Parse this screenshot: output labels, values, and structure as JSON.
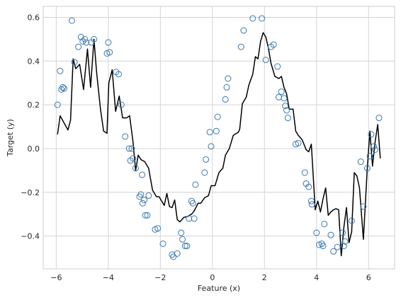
{
  "chart_data": {
    "type": "scatter",
    "title": "",
    "xlabel": "Feature (x)",
    "ylabel": "Target (y)",
    "xlim": [
      -6.5,
      7.0
    ],
    "ylim": [
      -0.55,
      0.65
    ],
    "xticks": [
      -6,
      -4,
      -2,
      0,
      2,
      4,
      6
    ],
    "yticks": [
      -0.4,
      -0.2,
      0.0,
      0.2,
      0.4,
      0.6
    ],
    "xtick_labels": [
      "−6",
      "−4",
      "−2",
      "0",
      "2",
      "4",
      "6"
    ],
    "ytick_labels": [
      "−0.4",
      "−0.2",
      "0.0",
      "0.2",
      "0.4",
      "0.6"
    ],
    "grid": true,
    "colors": {
      "points": "#3a78b0",
      "line": "#000000",
      "grid": "#d4d4d4",
      "frame": "#cccccc"
    },
    "series": [
      {
        "type": "scatter",
        "points": [
          [
            -5.95,
            0.2
          ],
          [
            -5.85,
            0.355
          ],
          [
            -5.8,
            0.27
          ],
          [
            -5.75,
            0.28
          ],
          [
            -5.7,
            0.275
          ],
          [
            -5.4,
            0.585
          ],
          [
            -5.3,
            0.395
          ],
          [
            -5.15,
            0.465
          ],
          [
            -5.05,
            0.51
          ],
          [
            -4.98,
            0.49
          ],
          [
            -4.9,
            0.5
          ],
          [
            -4.85,
            0.485
          ],
          [
            -4.65,
            0.485
          ],
          [
            -4.55,
            0.5
          ],
          [
            -4.05,
            0.435
          ],
          [
            -4.0,
            0.485
          ],
          [
            -3.95,
            0.44
          ],
          [
            -3.7,
            0.35
          ],
          [
            -3.6,
            0.34
          ],
          [
            -3.5,
            0.2
          ],
          [
            -3.35,
            0.055
          ],
          [
            -3.2,
            0.0
          ],
          [
            -3.15,
            -0.055
          ],
          [
            -3.1,
            0.0
          ],
          [
            -3.05,
            -0.045
          ],
          [
            -2.95,
            -0.09
          ],
          [
            -2.8,
            -0.22
          ],
          [
            -2.75,
            -0.21
          ],
          [
            -2.7,
            -0.12
          ],
          [
            -2.68,
            -0.25
          ],
          [
            -2.62,
            -0.235
          ],
          [
            -2.58,
            -0.305
          ],
          [
            -2.5,
            -0.305
          ],
          [
            -2.45,
            -0.215
          ],
          [
            -2.2,
            -0.37
          ],
          [
            -2.1,
            -0.365
          ],
          [
            -1.9,
            -0.435
          ],
          [
            -1.55,
            -0.485
          ],
          [
            -1.5,
            -0.495
          ],
          [
            -1.35,
            -0.48
          ],
          [
            -1.2,
            -0.385
          ],
          [
            -1.15,
            -0.415
          ],
          [
            -1.05,
            -0.445
          ],
          [
            -0.98,
            -0.445
          ],
          [
            -0.9,
            -0.32
          ],
          [
            -0.8,
            -0.24
          ],
          [
            -0.75,
            -0.25
          ],
          [
            -0.7,
            -0.32
          ],
          [
            -0.65,
            -0.165
          ],
          [
            -0.3,
            -0.11
          ],
          [
            -0.25,
            -0.05
          ],
          [
            -0.1,
            0.075
          ],
          [
            -0.05,
            0.01
          ],
          [
            0.15,
            0.08
          ],
          [
            0.2,
            0.145
          ],
          [
            0.5,
            0.225
          ],
          [
            0.55,
            0.28
          ],
          [
            0.6,
            0.32
          ],
          [
            1.1,
            0.465
          ],
          [
            1.2,
            0.54
          ],
          [
            1.55,
            0.595
          ],
          [
            1.9,
            0.595
          ],
          [
            2.05,
            0.405
          ],
          [
            2.25,
            0.465
          ],
          [
            2.35,
            0.475
          ],
          [
            2.5,
            0.375
          ],
          [
            2.55,
            0.235
          ],
          [
            2.65,
            0.26
          ],
          [
            2.75,
            0.23
          ],
          [
            2.8,
            0.195
          ],
          [
            2.85,
            0.175
          ],
          [
            2.9,
            0.14
          ],
          [
            3.2,
            0.02
          ],
          [
            3.3,
            0.025
          ],
          [
            3.55,
            -0.11
          ],
          [
            3.6,
            -0.16
          ],
          [
            3.7,
            -0.175
          ],
          [
            3.8,
            -0.24
          ],
          [
            3.82,
            -0.255
          ],
          [
            4.0,
            -0.385
          ],
          [
            4.1,
            -0.44
          ],
          [
            4.2,
            -0.435
          ],
          [
            4.25,
            -0.445
          ],
          [
            4.3,
            -0.345
          ],
          [
            4.55,
            -0.395
          ],
          [
            4.65,
            -0.47
          ],
          [
            4.8,
            -0.45
          ],
          [
            5.0,
            -0.385
          ],
          [
            5.05,
            -0.445
          ],
          [
            5.1,
            -0.425
          ],
          [
            5.35,
            -0.33
          ],
          [
            5.7,
            -0.06
          ],
          [
            5.8,
            -0.265
          ],
          [
            5.95,
            -0.09
          ],
          [
            6.05,
            -0.035
          ],
          [
            6.1,
            0.065
          ],
          [
            6.2,
            0.01
          ],
          [
            6.25,
            -0.005
          ],
          [
            6.4,
            0.14
          ]
        ]
      },
      {
        "type": "line",
        "points": [
          [
            -5.95,
            0.065
          ],
          [
            -5.85,
            0.15
          ],
          [
            -5.55,
            0.085
          ],
          [
            -5.45,
            0.13
          ],
          [
            -5.35,
            0.41
          ],
          [
            -5.25,
            0.365
          ],
          [
            -5.1,
            0.385
          ],
          [
            -4.95,
            0.27
          ],
          [
            -4.8,
            0.455
          ],
          [
            -4.68,
            0.28
          ],
          [
            -4.55,
            0.5
          ],
          [
            -4.45,
            0.35
          ],
          [
            -4.3,
            0.18
          ],
          [
            -4.18,
            0.08
          ],
          [
            -4.05,
            0.07
          ],
          [
            -3.98,
            0.3
          ],
          [
            -3.85,
            0.36
          ],
          [
            -3.72,
            0.17
          ],
          [
            -3.58,
            0.24
          ],
          [
            -3.45,
            0.14
          ],
          [
            -3.3,
            0.14
          ],
          [
            -3.18,
            0.15
          ],
          [
            -3.05,
            0.03
          ],
          [
            -2.95,
            -0.1
          ],
          [
            -2.85,
            -0.03
          ],
          [
            -2.75,
            -0.05
          ],
          [
            -2.6,
            -0.06
          ],
          [
            -2.45,
            -0.09
          ],
          [
            -2.3,
            -0.19
          ],
          [
            -2.15,
            -0.22
          ],
          [
            -2.05,
            -0.22
          ],
          [
            -1.95,
            -0.24
          ],
          [
            -1.85,
            -0.26
          ],
          [
            -1.75,
            -0.205
          ],
          [
            -1.65,
            -0.265
          ],
          [
            -1.55,
            -0.27
          ],
          [
            -1.45,
            -0.235
          ],
          [
            -1.35,
            -0.325
          ],
          [
            -1.25,
            -0.335
          ],
          [
            -1.1,
            -0.315
          ],
          [
            -0.95,
            -0.31
          ],
          [
            -0.8,
            -0.3
          ],
          [
            -0.7,
            -0.285
          ],
          [
            -0.55,
            -0.25
          ],
          [
            -0.45,
            -0.25
          ],
          [
            -0.3,
            -0.225
          ],
          [
            -0.15,
            -0.215
          ],
          [
            -0.05,
            -0.17
          ],
          [
            0.1,
            -0.17
          ],
          [
            0.25,
            -0.11
          ],
          [
            0.4,
            -0.09
          ],
          [
            0.5,
            -0.03
          ],
          [
            0.65,
            0.0
          ],
          [
            0.8,
            0.06
          ],
          [
            1.0,
            0.075
          ],
          [
            1.05,
            0.09
          ],
          [
            1.15,
            0.205
          ],
          [
            1.3,
            0.235
          ],
          [
            1.4,
            0.29
          ],
          [
            1.55,
            0.34
          ],
          [
            1.65,
            0.42
          ],
          [
            1.75,
            0.41
          ],
          [
            1.85,
            0.49
          ],
          [
            1.95,
            0.53
          ],
          [
            2.05,
            0.51
          ],
          [
            2.15,
            0.46
          ],
          [
            2.25,
            0.39
          ],
          [
            2.4,
            0.33
          ],
          [
            2.55,
            0.32
          ],
          [
            2.65,
            0.33
          ],
          [
            2.75,
            0.28
          ],
          [
            2.85,
            0.25
          ],
          [
            2.95,
            0.18
          ],
          [
            3.1,
            0.18
          ],
          [
            3.2,
            0.08
          ],
          [
            3.3,
            0.06
          ],
          [
            3.45,
            0.04
          ],
          [
            3.6,
            -0.005
          ],
          [
            3.7,
            -0.015
          ],
          [
            3.8,
            0.02
          ],
          [
            3.95,
            -0.28
          ],
          [
            4.05,
            -0.24
          ],
          [
            4.15,
            -0.29
          ],
          [
            4.25,
            -0.23
          ],
          [
            4.35,
            -0.18
          ],
          [
            4.45,
            -0.305
          ],
          [
            4.55,
            -0.29
          ],
          [
            4.65,
            -0.28
          ],
          [
            4.75,
            -0.275
          ],
          [
            4.85,
            -0.28
          ],
          [
            4.95,
            -0.49
          ],
          [
            5.05,
            -0.36
          ],
          [
            5.15,
            -0.27
          ],
          [
            5.25,
            -0.43
          ],
          [
            5.35,
            -0.38
          ],
          [
            5.45,
            -0.11
          ],
          [
            5.55,
            -0.125
          ],
          [
            5.65,
            -0.18
          ],
          [
            5.8,
            -0.415
          ],
          [
            5.95,
            -0.09
          ],
          [
            6.05,
            0.08
          ],
          [
            6.15,
            -0.08
          ],
          [
            6.25,
            0.03
          ],
          [
            6.35,
            0.11
          ],
          [
            6.45,
            -0.045
          ]
        ]
      }
    ]
  }
}
